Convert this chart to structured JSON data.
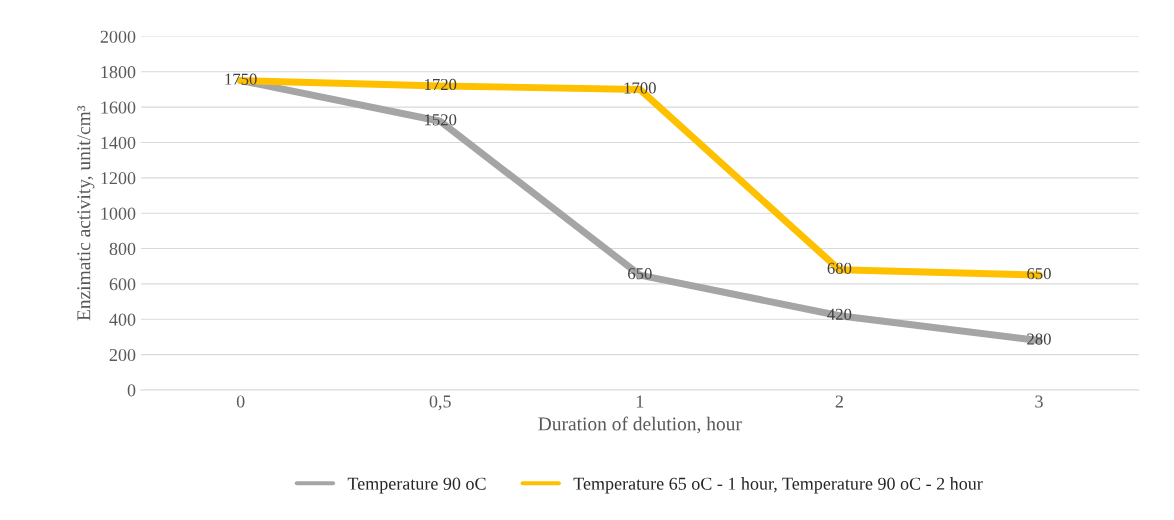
{
  "chart_data": {
    "type": "line",
    "xlabel": "Duration of delution, hour",
    "ylabel": "Enzimatic activity, unit/cm³",
    "categories": [
      "0",
      "0,5",
      "1",
      "2",
      "3"
    ],
    "series": [
      {
        "name": "Temperature 90 oC",
        "color": "#a5a5a5",
        "values": [
          1750,
          1520,
          650,
          420,
          280
        ],
        "value_labels": [
          null,
          "1520",
          "650",
          "420",
          "280"
        ]
      },
      {
        "name": "Temperature 65 oC - 1 hour, Temperature 90 oC - 2 hour",
        "color": "#ffc000",
        "values": [
          1750,
          1720,
          1700,
          680,
          650
        ],
        "value_labels": [
          "1750",
          "1720",
          "1700",
          "680",
          "650"
        ]
      }
    ],
    "ylim": [
      0,
      2000
    ],
    "yticks": [
      0,
      200,
      400,
      600,
      800,
      1000,
      1200,
      1400,
      1600,
      1800,
      2000
    ],
    "grid": "y",
    "legend": "bottom",
    "marker": "none",
    "line_style": "solid"
  }
}
